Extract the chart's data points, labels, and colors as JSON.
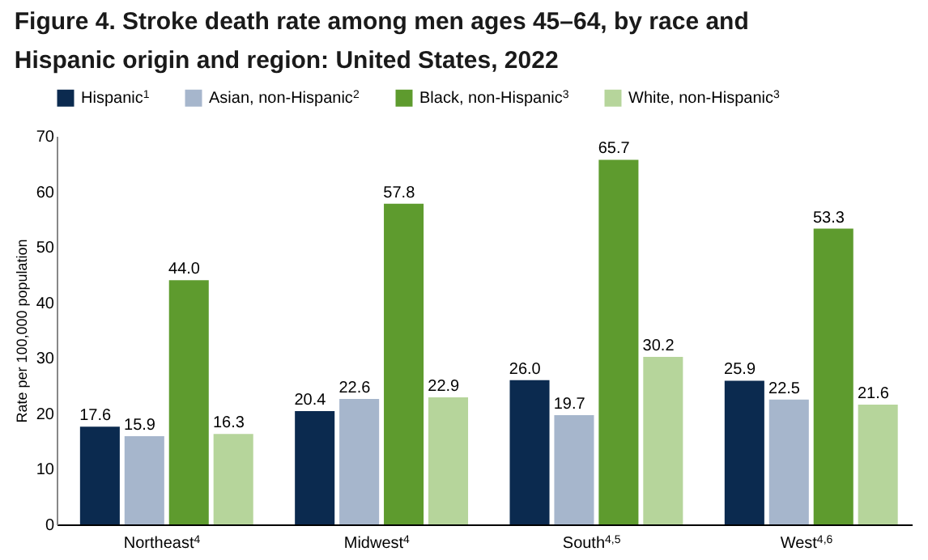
{
  "chart_data": {
    "type": "bar",
    "title": "Figure 4. Stroke death rate among men ages 45–64, by race and Hispanic origin and region: United States, 2022",
    "categories": [
      "Northeast$^{4}$",
      "Midwest$^{4}$",
      "South$^{4,5}$",
      "West$^{4,6}$"
    ],
    "ylabel": "Rate per 100,000 population",
    "ylim": [
      0,
      70
    ],
    "yticks": [
      0,
      10,
      20,
      30,
      40,
      50,
      60,
      70
    ],
    "series": [
      {
        "name": "Hispanic$^{1}$",
        "color": "#0b2a4f",
        "values": [
          17.6,
          20.4,
          26.0,
          25.9
        ],
        "value_labels": [
          "17.6",
          "20.4",
          "26.0",
          "25.9"
        ]
      },
      {
        "name": "Asian, non-Hispanic$^{2}$",
        "color": "#a6b6cc",
        "values": [
          15.9,
          22.6,
          19.7,
          22.5
        ],
        "value_labels": [
          "15.9",
          "22.6",
          "19.7",
          "22.5"
        ]
      },
      {
        "name": "Black, non-Hispanic$^{3}$",
        "color": "#5e9b2e",
        "values": [
          44.0,
          57.8,
          65.7,
          53.3
        ],
        "value_labels": [
          "44.0",
          "57.8",
          "65.7",
          "53.3"
        ]
      },
      {
        "name": "White, non-Hispanic$^{3}$",
        "color": "#b6d59b",
        "values": [
          16.3,
          22.9,
          30.2,
          21.6
        ],
        "value_labels": [
          "16.3",
          "22.9",
          "30.2",
          "21.6"
        ]
      }
    ],
    "grid": false,
    "legend": "top"
  }
}
